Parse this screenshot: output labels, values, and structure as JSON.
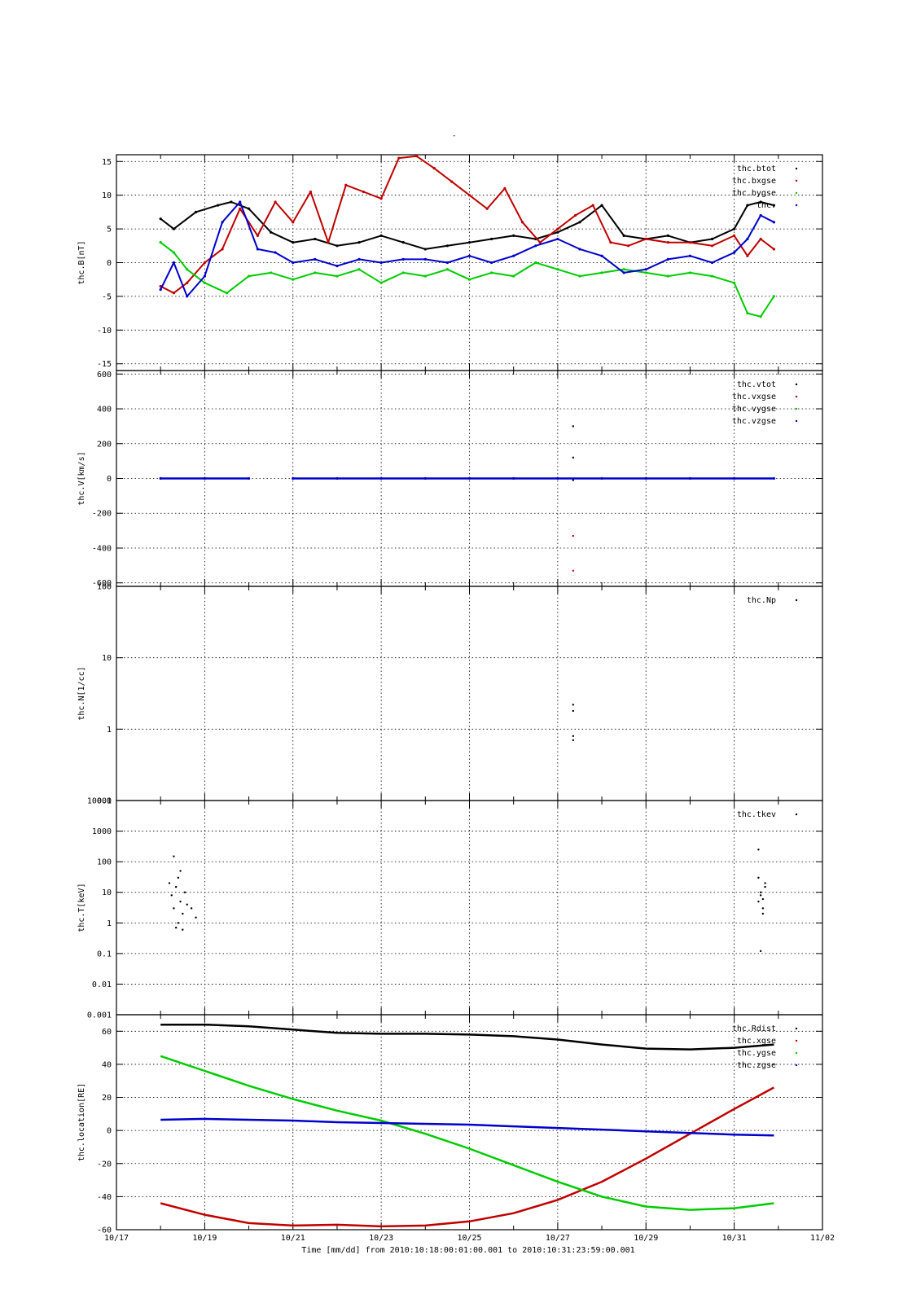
{
  "page_title": "-",
  "x_axis": {
    "ticks": [
      "10/17",
      "10/19",
      "10/21",
      "10/23",
      "10/25",
      "10/27",
      "10/29",
      "10/31",
      "11/02"
    ],
    "label": "Time [mm/dd]  from 2010:10:18:00:01:00.001  to  2010:10:31:23:59:00.001"
  },
  "colors": {
    "black": "#000000",
    "red": "#c00000",
    "green": "#00cc00",
    "blue": "#0000cc"
  },
  "chart_data": [
    {
      "type": "scatter",
      "ylabel": "thc.B[nT]",
      "scale": "linear",
      "ylim": [
        -16,
        16
      ],
      "yticks": [
        15,
        10,
        5,
        0,
        -5,
        -10,
        -15
      ],
      "ytick_labels": [
        "15",
        "10",
        "5",
        "0",
        "-5",
        "-10",
        "-15"
      ],
      "legend": [
        "thc.btot",
        "thc.bxgse",
        "thc.bygse",
        "thc."
      ],
      "series": [
        {
          "name": "thc.btot",
          "color": "#000000",
          "x": [
            18.0,
            18.3,
            18.8,
            19.3,
            19.6,
            20.0,
            20.5,
            21.0,
            21.5,
            22.0,
            22.5,
            23.0,
            23.5,
            24.0,
            24.5,
            25.0,
            25.5,
            26.0,
            26.5,
            27.0,
            27.5,
            28.0,
            28.5,
            29.0,
            29.5,
            30.0,
            30.5,
            31.0,
            31.3,
            31.6,
            31.9
          ],
          "y": [
            6.5,
            5.0,
            7.5,
            8.5,
            9.0,
            8.0,
            4.5,
            3.0,
            3.5,
            2.5,
            3.0,
            4.0,
            3.0,
            2.0,
            2.5,
            3.0,
            3.5,
            4.0,
            3.5,
            4.5,
            6.0,
            8.5,
            4.0,
            3.5,
            4.0,
            3.0,
            3.5,
            5.0,
            8.5,
            9.0,
            8.5
          ]
        },
        {
          "name": "thc.bxgse",
          "color": "#c00000",
          "x": [
            18.0,
            18.3,
            18.6,
            19.0,
            19.4,
            19.8,
            20.2,
            20.6,
            21.0,
            21.4,
            21.8,
            22.2,
            22.6,
            23.0,
            23.4,
            23.8,
            24.2,
            24.6,
            25.0,
            25.4,
            25.8,
            26.2,
            26.6,
            27.0,
            27.4,
            27.8,
            28.2,
            28.6,
            29.0,
            29.5,
            30.0,
            30.5,
            31.0,
            31.3,
            31.6,
            31.9
          ],
          "y": [
            -3.5,
            -4.5,
            -3.0,
            0.0,
            2.0,
            8.0,
            4.0,
            9.0,
            6.0,
            10.5,
            3.0,
            11.5,
            10.5,
            9.5,
            15.5,
            15.8,
            14.0,
            12.0,
            10.0,
            8.0,
            11.0,
            6.0,
            3.0,
            5.0,
            7.0,
            8.5,
            3.0,
            2.5,
            3.5,
            3.0,
            3.0,
            2.5,
            4.0,
            1.0,
            3.5,
            2.0
          ]
        },
        {
          "name": "thc.bygse",
          "color": "#00cc00",
          "x": [
            18.0,
            18.3,
            18.6,
            19.0,
            19.5,
            20.0,
            20.5,
            21.0,
            21.5,
            22.0,
            22.5,
            23.0,
            23.5,
            24.0,
            24.5,
            25.0,
            25.5,
            26.0,
            26.5,
            27.0,
            27.5,
            28.0,
            28.5,
            29.0,
            29.5,
            30.0,
            30.5,
            31.0,
            31.3,
            31.6,
            31.9
          ],
          "y": [
            3.0,
            1.5,
            -1.0,
            -3.0,
            -4.5,
            -2.0,
            -1.5,
            -2.5,
            -1.5,
            -2.0,
            -1.0,
            -3.0,
            -1.5,
            -2.0,
            -1.0,
            -2.5,
            -1.5,
            -2.0,
            0.0,
            -1.0,
            -2.0,
            -1.5,
            -1.0,
            -1.5,
            -2.0,
            -1.5,
            -2.0,
            -3.0,
            -7.5,
            -8.0,
            -5.0
          ]
        },
        {
          "name": "thc.",
          "color": "#0000cc",
          "x": [
            18.0,
            18.3,
            18.6,
            19.0,
            19.4,
            19.8,
            20.2,
            20.6,
            21.0,
            21.5,
            22.0,
            22.5,
            23.0,
            23.5,
            24.0,
            24.5,
            25.0,
            25.5,
            26.0,
            26.5,
            27.0,
            27.5,
            28.0,
            28.5,
            29.0,
            29.5,
            30.0,
            30.5,
            31.0,
            31.3,
            31.6,
            31.9
          ],
          "y": [
            -4.0,
            0.0,
            -5.0,
            -2.0,
            6.0,
            9.0,
            2.0,
            1.5,
            0.0,
            0.5,
            -0.5,
            0.5,
            0.0,
            0.5,
            0.5,
            0.0,
            1.0,
            0.0,
            1.0,
            2.5,
            3.5,
            2.0,
            1.0,
            -1.5,
            -1.0,
            0.5,
            1.0,
            0.0,
            1.5,
            3.5,
            7.0,
            6.0
          ]
        }
      ]
    },
    {
      "type": "scatter",
      "ylabel": "thc.V[km/s]",
      "scale": "linear",
      "ylim": [
        -620,
        620
      ],
      "yticks": [
        600,
        400,
        200,
        0,
        -200,
        -400,
        -600
      ],
      "ytick_labels": [
        "600",
        "400",
        "200",
        "0",
        "-200",
        "-400",
        "-600"
      ],
      "legend": [
        "thc.vtot",
        "thc.vxgse",
        "thc.vygse",
        "thc.vzgse"
      ],
      "series": [
        {
          "name": "thc.vzgse",
          "color": "#0000cc",
          "x": [
            18.0,
            19.0,
            20.0,
            20.5,
            21.0,
            22.0,
            23.0,
            24.0,
            25.0,
            26.0,
            27.0,
            28.0,
            29.0,
            30.0,
            31.0,
            31.9
          ],
          "y": [
            0,
            0,
            0,
            null,
            0,
            0,
            0,
            0,
            0,
            0,
            0,
            0,
            0,
            0,
            0,
            0
          ]
        },
        {
          "name": "thc.vtot",
          "color": "#000000",
          "x": [
            27.35,
            27.35,
            27.35
          ],
          "y": [
            300,
            120,
            -10
          ]
        },
        {
          "name": "thc.vxgse",
          "color": "#c00000",
          "x": [
            27.35,
            27.35
          ],
          "y": [
            -330,
            -530
          ]
        }
      ]
    },
    {
      "type": "scatter",
      "ylabel": "thc.N[1/cc]",
      "scale": "log",
      "ylim": [
        0.1,
        100
      ],
      "yticks": [
        100,
        10,
        1,
        0.1
      ],
      "ytick_labels": [
        "100",
        "10",
        "1",
        "0.1"
      ],
      "legend": [
        "thc.Np"
      ],
      "series": [
        {
          "name": "thc.Np",
          "color": "#000000",
          "x": [
            27.35,
            27.35,
            27.35,
            27.35
          ],
          "y": [
            2.2,
            1.8,
            0.8,
            0.7
          ]
        }
      ]
    },
    {
      "type": "scatter",
      "ylabel": "thc.T[keV]",
      "scale": "log",
      "ylim": [
        0.001,
        10000
      ],
      "yticks": [
        10000,
        1000,
        100,
        10,
        1,
        0.1,
        0.01,
        0.001
      ],
      "ytick_labels": [
        "10000",
        "1000",
        "100",
        "10",
        "1",
        "0.1",
        "0.01",
        "0.001"
      ],
      "legend": [
        "thc.tkev"
      ],
      "series": [
        {
          "name": "thc.tkev",
          "color": "#000000",
          "x": [
            18.2,
            18.25,
            18.3,
            18.35,
            18.4,
            18.45,
            18.5,
            18.55,
            18.6,
            18.3,
            18.4,
            18.5,
            18.7,
            18.8,
            18.35,
            18.45,
            31.55,
            31.6,
            31.65,
            31.7,
            31.6,
            31.55,
            31.65,
            31.7,
            31.6,
            31.65,
            31.55
          ],
          "y": [
            20,
            8,
            3,
            15,
            30,
            5,
            2,
            10,
            4,
            150,
            1,
            0.6,
            3,
            1.5,
            0.7,
            50,
            5,
            10,
            3,
            20,
            8,
            250,
            2,
            15,
            0.12,
            6,
            30
          ]
        }
      ]
    },
    {
      "type": "line",
      "ylabel": "thc.location[RE]",
      "xlabel": "Time [mm/dd]",
      "scale": "linear",
      "ylim": [
        -60,
        70
      ],
      "yticks": [
        60,
        40,
        20,
        0,
        -20,
        -40,
        -60
      ],
      "ytick_labels": [
        "60",
        "40",
        "20",
        "0",
        "-20",
        "-40",
        "-60"
      ],
      "legend": [
        "thc.Rdist",
        "thc.xgse",
        "thc.ygse",
        "thc.zgse"
      ],
      "series": [
        {
          "name": "thc.Rdist",
          "color": "#000000",
          "x": [
            18.0,
            19.0,
            20.0,
            21.0,
            22.0,
            23.0,
            24.0,
            25.0,
            26.0,
            27.0,
            28.0,
            29.0,
            30.0,
            31.0,
            31.9
          ],
          "y": [
            64,
            64,
            63,
            61,
            59,
            58.5,
            58.5,
            58,
            57,
            55,
            52,
            49.5,
            49,
            50,
            52
          ]
        },
        {
          "name": "thc.xgse",
          "color": "#c00000",
          "x": [
            18.0,
            19.0,
            20.0,
            21.0,
            22.0,
            23.0,
            24.0,
            25.0,
            26.0,
            27.0,
            28.0,
            29.0,
            30.0,
            31.0,
            31.9
          ],
          "y": [
            -44,
            -51,
            -56,
            -57.5,
            -57,
            -58,
            -57.5,
            -55,
            -50,
            -42,
            -31,
            -17,
            -2,
            13,
            26
          ]
        },
        {
          "name": "thc.ygse",
          "color": "#00cc00",
          "x": [
            18.0,
            19.0,
            20.0,
            21.0,
            22.0,
            23.0,
            24.0,
            25.0,
            26.0,
            27.0,
            28.0,
            29.0,
            30.0,
            31.0,
            31.9
          ],
          "y": [
            45,
            36,
            27,
            19,
            12,
            6,
            -2,
            -11,
            -21,
            -31,
            -40,
            -46,
            -48,
            -47,
            -44
          ]
        },
        {
          "name": "thc.zgse",
          "color": "#0000cc",
          "x": [
            18.0,
            19.0,
            20.0,
            21.0,
            22.0,
            23.0,
            24.0,
            25.0,
            26.0,
            27.0,
            28.0,
            29.0,
            30.0,
            31.0,
            31.9
          ],
          "y": [
            6.5,
            7,
            6.5,
            6,
            5,
            4.5,
            4,
            3.5,
            2.5,
            1.5,
            0.5,
            -0.5,
            -1.5,
            -2.5,
            -3
          ]
        }
      ]
    }
  ]
}
